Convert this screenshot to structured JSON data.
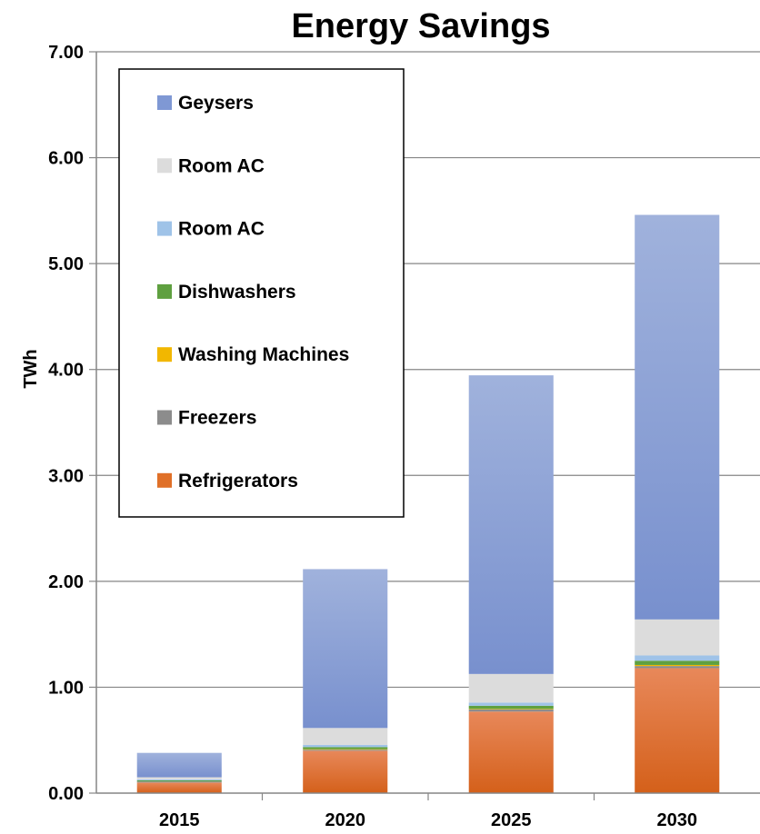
{
  "chart_data": {
    "type": "bar",
    "stacked": true,
    "title": "Energy Savings",
    "xlabel": "",
    "ylabel": "TWh",
    "ylim": [
      0,
      7
    ],
    "y_ticks": [
      "0.00",
      "1.00",
      "2.00",
      "3.00",
      "4.00",
      "5.00",
      "6.00",
      "7.00"
    ],
    "grid": true,
    "legend_position": "top-left",
    "categories": [
      "2015",
      "2020",
      "2025",
      "2030"
    ],
    "series": [
      {
        "name": "Refrigerators",
        "color": "#E07028",
        "values": [
          0.1,
          0.4,
          0.77,
          1.18
        ]
      },
      {
        "name": "Freezers",
        "color": "#8C8C8C",
        "values": [
          0.01,
          0.01,
          0.02,
          0.02
        ]
      },
      {
        "name": "Washing Machines",
        "color": "#F2B700",
        "values": [
          0.0,
          0.005,
          0.005,
          0.01
        ]
      },
      {
        "name": "Dishwashers",
        "color": "#5FA040",
        "values": [
          0.01,
          0.02,
          0.03,
          0.04
        ]
      },
      {
        "name": "Room AC",
        "color": "#9FC3E8",
        "values": [
          0.01,
          0.02,
          0.03,
          0.05
        ]
      },
      {
        "name": "Room AC",
        "color": "#DCDCDC",
        "values": [
          0.02,
          0.16,
          0.27,
          0.34
        ]
      },
      {
        "name": "Geysers",
        "color": "#7F98D4",
        "values": [
          0.23,
          1.5,
          2.82,
          3.82
        ]
      }
    ]
  }
}
